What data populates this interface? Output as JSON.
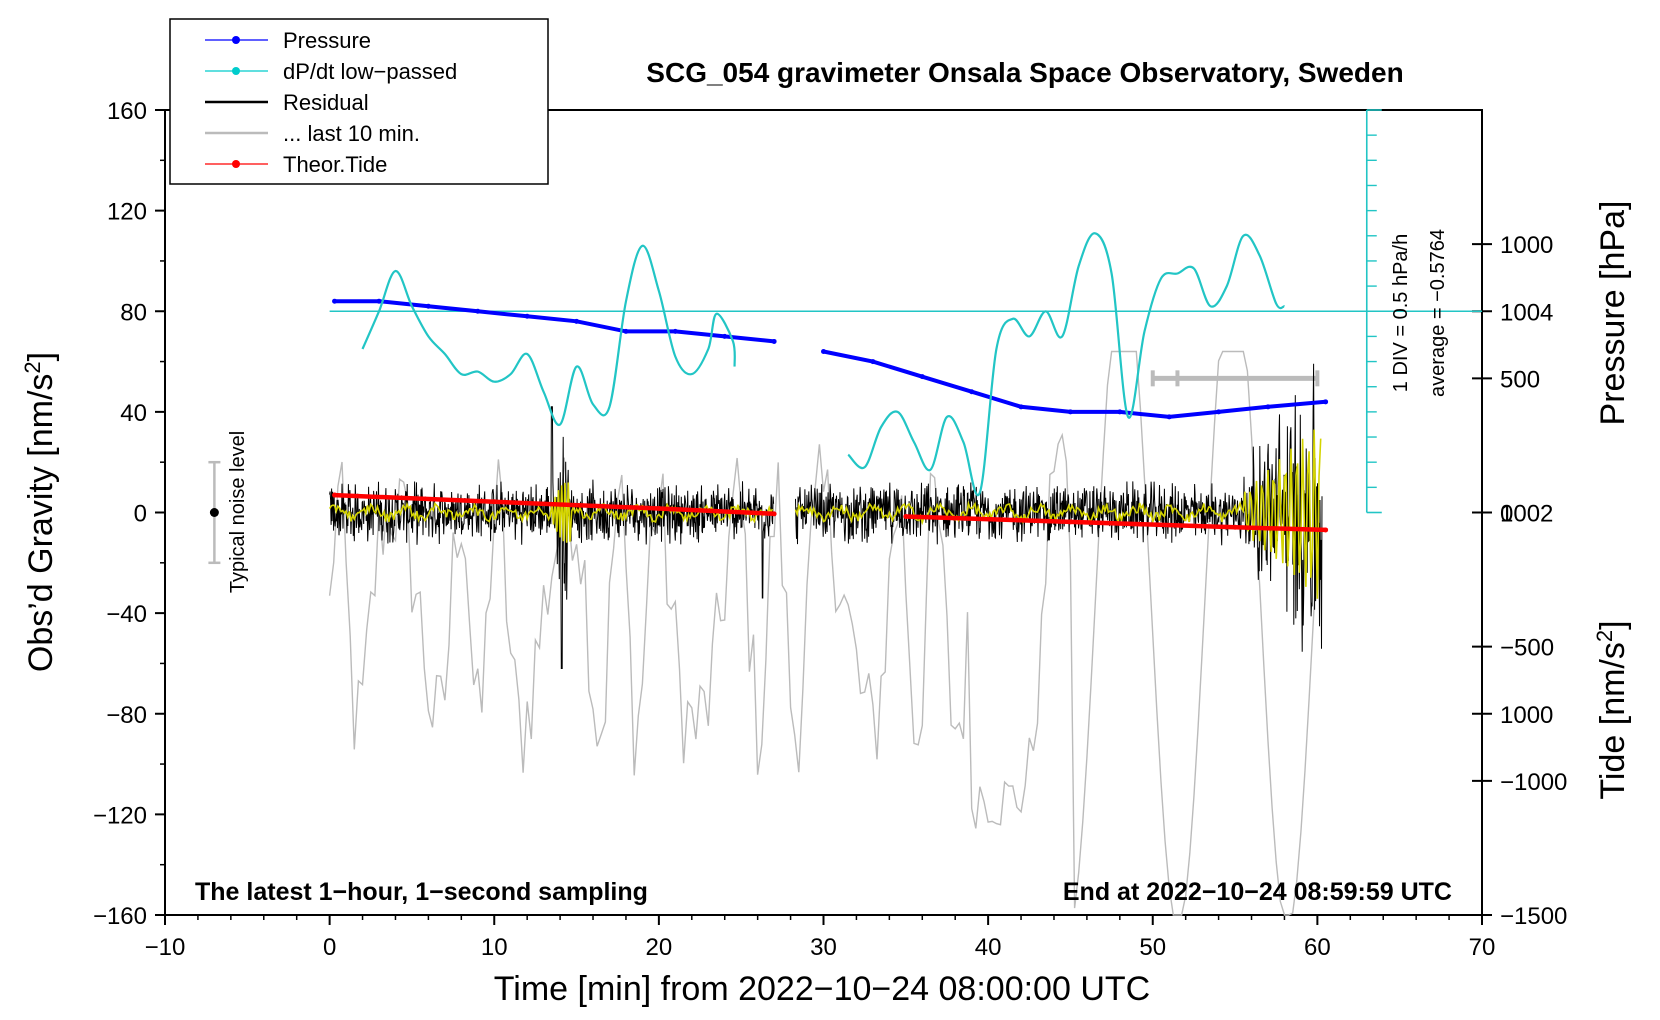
{
  "chart_data": {
    "type": "line",
    "title": "SCG_054 gravimeter Onsala Space Observatory, Sweden",
    "xlabel": "Time [min] from 2022−10−24 08:00:00 UTC",
    "ylabel_left_main": "Obs’d Gravity [nm/s",
    "ylabel_left_sup": "2",
    "ylabel_left_close": "]",
    "ylabel_right_pressure": "Pressure [hPa]",
    "ylabel_right_tide_main": "Tide [nm/s",
    "ylabel_right_tide_sup": "2",
    "ylabel_right_tide_close": "]",
    "xlim": [
      -10,
      70
    ],
    "ylim": [
      -160,
      160
    ],
    "pressure_lim": [
      998,
      1006
    ],
    "tide_lim": [
      -1500,
      1500
    ],
    "x_ticks": [
      {
        "v": -10,
        "label": "−10"
      },
      {
        "v": 0,
        "label": "0"
      },
      {
        "v": 10,
        "label": "10"
      },
      {
        "v": 20,
        "label": "20"
      },
      {
        "v": 30,
        "label": "30"
      },
      {
        "v": 40,
        "label": "40"
      },
      {
        "v": 50,
        "label": "50"
      },
      {
        "v": 60,
        "label": "60"
      },
      {
        "v": 70,
        "label": "70"
      }
    ],
    "y_ticks": [
      {
        "v": 160,
        "label": "160"
      },
      {
        "v": 120,
        "label": "120"
      },
      {
        "v": 80,
        "label": "80"
      },
      {
        "v": 40,
        "label": "40"
      },
      {
        "v": 0,
        "label": "0"
      },
      {
        "v": -40,
        "label": "−40"
      },
      {
        "v": -80,
        "label": "−80"
      },
      {
        "v": -120,
        "label": "−120"
      },
      {
        "v": -160,
        "label": "−160"
      }
    ],
    "pressure_ticks": [
      {
        "v": 1004,
        "label": "1004"
      },
      {
        "v": 1002,
        "label": "1002"
      },
      {
        "v": 1000,
        "label": "1000"
      }
    ],
    "tide_ticks": [
      {
        "v": 1000,
        "label": "1000"
      },
      {
        "v": 500,
        "label": "500"
      },
      {
        "v": 0,
        "label": "0"
      },
      {
        "v": -500,
        "label": "−500"
      },
      {
        "v": -1000,
        "label": "−1000"
      },
      {
        "v": -1500,
        "label": "−1500"
      }
    ],
    "legend": [
      {
        "label": "Pressure",
        "color": "#0000ff",
        "marker": true
      },
      {
        "label": "dP/dt low−passed",
        "color": "#00cccc",
        "marker": true
      },
      {
        "label": "Residual",
        "color": "#000000",
        "marker": false
      },
      {
        "label": "... last 10 min.",
        "color": "#bbbbbb",
        "marker": false
      },
      {
        "label": "Theor.Tide",
        "color": "#ff0000",
        "marker": true
      }
    ],
    "series": [
      {
        "name": "Pressure",
        "axis": "pressure",
        "color": "#0000ff",
        "x": [
          0.3,
          3,
          6,
          9,
          12,
          15,
          18,
          21,
          24,
          27,
          28.2,
          30,
          33,
          36,
          39,
          42,
          45,
          48,
          51,
          54,
          57,
          60.5
        ],
        "y": [
          1004.1,
          1004.1,
          1004.05,
          1004.0,
          1003.95,
          1003.9,
          1003.8,
          1003.8,
          1003.75,
          1003.7,
          null,
          1003.6,
          1003.5,
          1003.35,
          1003.2,
          1003.05,
          1003.0,
          1003.0,
          1002.95,
          1003.0,
          1003.05,
          1003.1
        ]
      },
      {
        "name": "dP/dt low-passed",
        "axis": "dpdt",
        "color": "#00cccc",
        "x": [
          2,
          3,
          4,
          5,
          6,
          7,
          8,
          9,
          10,
          11,
          12,
          13,
          14,
          15,
          16,
          17,
          18,
          19,
          20,
          21,
          22,
          23,
          23.5,
          24.5,
          24.6,
          30.5,
          31.5,
          32.5,
          33.5,
          34.5,
          35.5,
          36.5,
          37.5,
          38.5,
          39.5,
          40.5,
          41.5,
          42.5,
          43.5,
          44.5,
          45.5,
          46.5,
          47.5,
          48.5,
          49.5,
          50.5,
          51.5,
          52.5,
          53.5,
          54.5,
          55.5,
          56.5,
          57.5,
          58
        ],
        "y": [
          65,
          80,
          96,
          82,
          70,
          63,
          55,
          56,
          52,
          55,
          63,
          48,
          35,
          58,
          43,
          42,
          84,
          106,
          88,
          62,
          55,
          65,
          79,
          68,
          58,
          null,
          23,
          18,
          34,
          40,
          28,
          17,
          38,
          28,
          8,
          65,
          77,
          70,
          80,
          70,
          98,
          111,
          95,
          38,
          72,
          93,
          95,
          97,
          82,
          90,
          110,
          102,
          83,
          82
        ]
      },
      {
        "name": "Theor.Tide",
        "axis": "tide",
        "color": "#ff0000",
        "x": [
          0.3,
          10,
          20,
          27,
          28.3,
          35,
          45,
          55,
          60.5
        ],
        "y": [
          65,
          40,
          15,
          -5,
          null,
          -15,
          -35,
          -55,
          -65
        ]
      }
    ],
    "dpdt_axis": {
      "div_label": "1 DIV = 0.5 hPa/h",
      "average_label": "average = −0.5764",
      "x_position": 63,
      "baseline": 80,
      "zero_level": 0,
      "top_level": 160
    },
    "noise_bar": {
      "x": -7,
      "low": -20,
      "high": 20,
      "center": 0,
      "label": "Typical noise level"
    },
    "last10_bar": {
      "x1": 50,
      "x2": 60,
      "y_tide": 500
    },
    "annotations": {
      "bottom_left": "The latest 1−hour, 1−second sampling",
      "bottom_right": "End at 2022−10−24 08:59:59 UTC"
    }
  },
  "colors": {
    "pressure": "#0000ff",
    "dpdt": "#22c5c5",
    "residual": "#000000",
    "residual_lowpass": "#d4d400",
    "last10": "#bbbbbb",
    "tide": "#ff0000",
    "noise_bar": "#bbbbbb"
  }
}
